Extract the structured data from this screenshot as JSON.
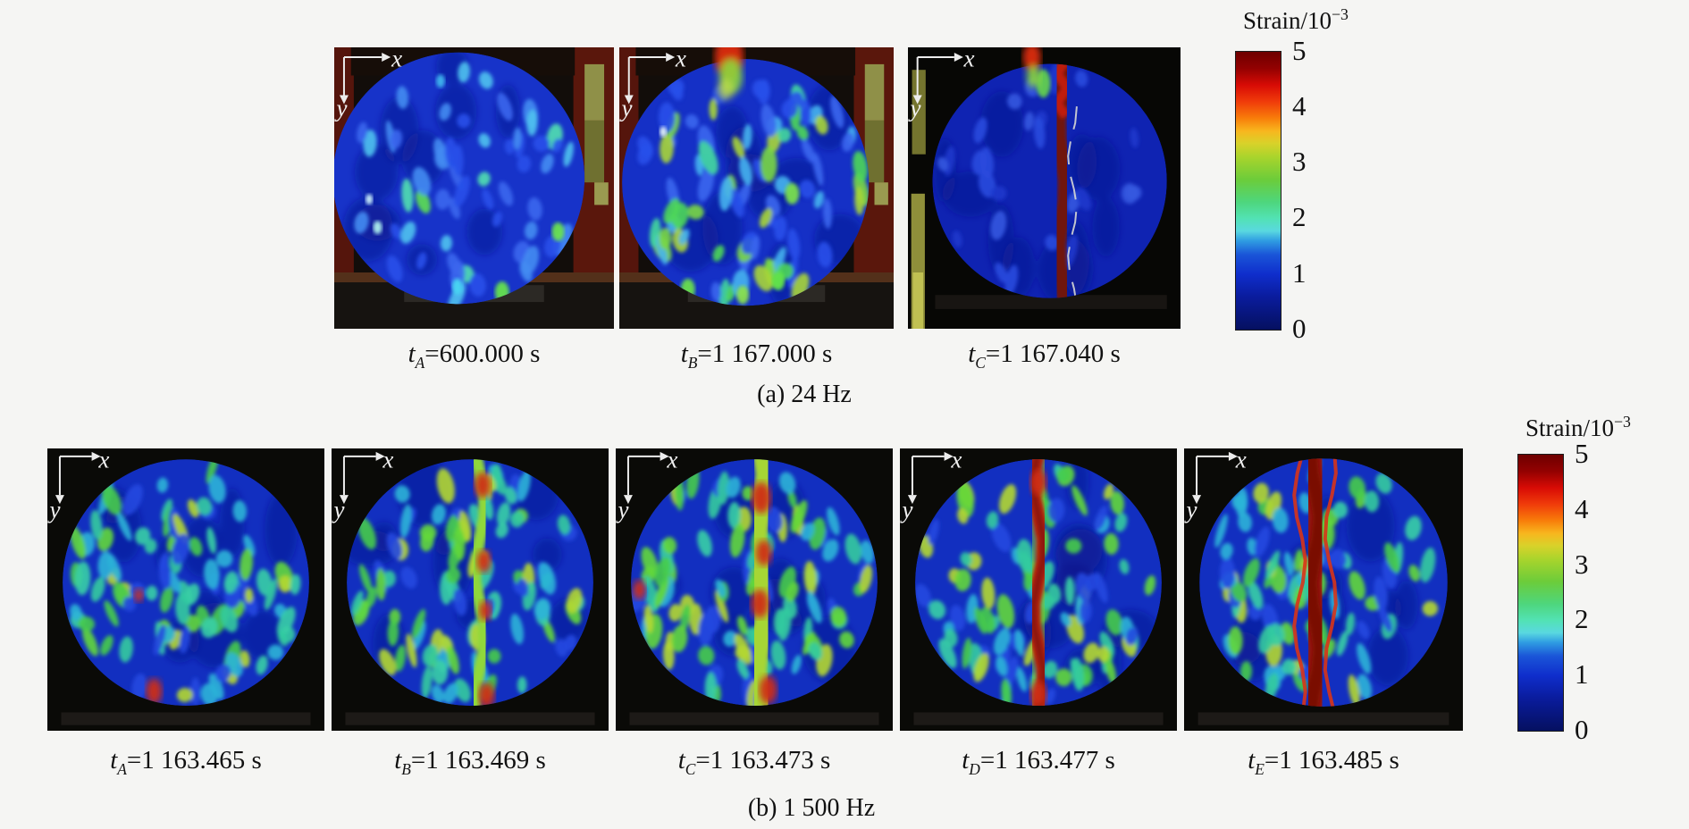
{
  "page": {
    "background": "#f5f5f3"
  },
  "axis": {
    "x_label": "x",
    "y_label": "y"
  },
  "colormap": {
    "stops": [
      [
        0.0,
        "#6e0000"
      ],
      [
        0.06,
        "#930101"
      ],
      [
        0.12,
        "#d80b05"
      ],
      [
        0.18,
        "#f03c0a"
      ],
      [
        0.24,
        "#f87e0a"
      ],
      [
        0.285,
        "#f8b61e"
      ],
      [
        0.33,
        "#d8d22a"
      ],
      [
        0.38,
        "#a8d42c"
      ],
      [
        0.46,
        "#6ccc3a"
      ],
      [
        0.54,
        "#4ed67c"
      ],
      [
        0.6,
        "#52e2b4"
      ],
      [
        0.645,
        "#59d8e0"
      ],
      [
        0.68,
        "#2f9de2"
      ],
      [
        0.73,
        "#1a55d8"
      ],
      [
        0.8,
        "#0f2ecc"
      ],
      [
        0.88,
        "#0a1c9e"
      ],
      [
        1.0,
        "#051060"
      ]
    ]
  },
  "colorbars": [
    {
      "title_base": "Strain/10",
      "title_exp": "−3",
      "ticks": [
        "5",
        "4",
        "3",
        "2",
        "1",
        "0"
      ]
    },
    {
      "title_base": "Strain/10",
      "title_exp": "−3",
      "ticks": [
        "5",
        "4",
        "3",
        "2",
        "1",
        "0"
      ]
    }
  ],
  "rows": [
    {
      "caption": "(a) 24 Hz",
      "images": [
        {
          "t_var": "t",
          "t_sub": "A",
          "t_rest": "=600.000 s"
        },
        {
          "t_var": "t",
          "t_sub": "B",
          "t_rest": "=1 167.000 s"
        },
        {
          "t_var": "t",
          "t_sub": "C",
          "t_rest": "=1 167.040 s"
        }
      ]
    },
    {
      "caption": "(b) 1 500 Hz",
      "images": [
        {
          "t_var": "t",
          "t_sub": "A",
          "t_rest": "=1 163.465 s"
        },
        {
          "t_var": "t",
          "t_sub": "B",
          "t_rest": "=1 163.469 s"
        },
        {
          "t_var": "t",
          "t_sub": "C",
          "t_rest": "=1 163.473 s"
        },
        {
          "t_var": "t",
          "t_sub": "D",
          "t_rest": "=1 163.477 s"
        },
        {
          "t_var": "t",
          "t_sub": "E",
          "t_rest": "=1 163.485 s"
        }
      ]
    }
  ],
  "render": {
    "a0": {
      "seed": 11,
      "scene": "labA",
      "circle": [
        0.445,
        0.465,
        0.45
      ],
      "base": "#1733c9",
      "speckles": {
        "n": 55,
        "warm": 0.08,
        "cold": [
          "#2750ea",
          "#3a66ee",
          "#448cf2",
          "#4fc2f0"
        ],
        "warmc": [
          "#52e0b0",
          "#5ce052"
        ]
      },
      "accents": [
        [
          0.6,
          0.87,
          "#66e24e",
          8
        ],
        [
          0.8,
          0.655,
          "#6ae250",
          7
        ],
        [
          0.155,
          0.64,
          "#aef2ee",
          5
        ],
        [
          0.125,
          0.54,
          "#d2f8ff",
          4
        ],
        [
          0.44,
          0.85,
          "#48d8f2",
          6
        ],
        [
          0.38,
          0.12,
          "#3fb6ee",
          5
        ]
      ],
      "arrows": "A"
    },
    "a1": {
      "seed": 23,
      "scene": "labA",
      "circle": [
        0.46,
        0.48,
        0.45
      ],
      "base": "#1530c6",
      "speckles": {
        "n": 85,
        "warm": 0.4,
        "cold": [
          "#2750ea",
          "#3a66ee",
          "#47b4f0"
        ],
        "warmc": [
          "#43d89c",
          "#4ed858",
          "#7ad842",
          "#a8d636"
        ]
      },
      "flame": {
        "x": 0.4,
        "big": true
      },
      "accents": [
        [
          0.16,
          0.3,
          "#e8f8f8",
          4
        ],
        [
          0.63,
          0.52,
          "#7ae04e",
          8
        ],
        [
          0.25,
          0.86,
          "#6ae04c",
          8
        ],
        [
          0.45,
          0.88,
          "#8ae04e",
          7
        ],
        [
          0.58,
          0.83,
          "#5ee24c",
          7
        ]
      ],
      "arrows": "A"
    },
    "a2": {
      "seed": 37,
      "scene": "labC",
      "circle": [
        0.52,
        0.475,
        0.43
      ],
      "base": "#0f23b2",
      "speckles": {
        "n": 26,
        "warm": 0.0,
        "cold": [
          "#1c37cc",
          "#2a4ade",
          "#3558e0"
        ],
        "warmc": []
      },
      "crack": {
        "x": 0.565,
        "w": 0.062,
        "color": "#701510",
        "bright": "#c01c0e",
        "fringe": true
      },
      "flame": {
        "x": 0.455,
        "small": true
      },
      "arrows": "A"
    },
    "b0": {
      "seed": 51,
      "scene": "darkB",
      "circle": [
        0.5,
        0.475,
        0.445
      ],
      "base": "#122fc0",
      "speckles": {
        "n": 95,
        "warm": 0.5,
        "cold": [
          "#2448e0",
          "#2cb4d8",
          "#33cba0"
        ],
        "warmc": [
          "#46cc4a",
          "#63d83a",
          "#b4d832",
          "#38cfa6"
        ]
      },
      "reds": [
        [
          0.385,
          0.86,
          9
        ],
        [
          0.33,
          0.52,
          5
        ]
      ],
      "arrows": "B"
    },
    "b1": {
      "seed": 63,
      "scene": "darkB",
      "circle": [
        0.5,
        0.475,
        0.445
      ],
      "base": "#122fc0",
      "speckles": {
        "n": 95,
        "warm": 0.52,
        "cold": [
          "#2448e0",
          "#2cb4d8",
          "#33cba0"
        ],
        "warmc": [
          "#46cc4a",
          "#63d83a",
          "#b4d832",
          "#38cfa6"
        ]
      },
      "band": {
        "x": 0.535,
        "w": 0.045,
        "color": "#90d83a"
      },
      "reds": [
        [
          0.545,
          0.13,
          9
        ],
        [
          0.55,
          0.4,
          8
        ],
        [
          0.555,
          0.575,
          7
        ],
        [
          0.56,
          0.875,
          9
        ]
      ],
      "arrows": "B"
    },
    "b2": {
      "seed": 77,
      "scene": "darkB",
      "circle": [
        0.5,
        0.475,
        0.445
      ],
      "base": "#122fc0",
      "speckles": {
        "n": 100,
        "warm": 0.55,
        "cold": [
          "#2448e0",
          "#2cb4d8",
          "#33cba0"
        ],
        "warmc": [
          "#46cc4a",
          "#63d83a",
          "#b4d832",
          "#38cfa6"
        ]
      },
      "band": {
        "x": 0.525,
        "w": 0.08,
        "color": "#a6d634"
      },
      "reds": [
        [
          0.525,
          0.175,
          11
        ],
        [
          0.535,
          0.37,
          9
        ],
        [
          0.52,
          0.55,
          10
        ],
        [
          0.55,
          0.855,
          10
        ],
        [
          0.085,
          0.5,
          7
        ]
      ],
      "arrows": "B"
    },
    "b3": {
      "seed": 89,
      "scene": "darkB",
      "circle": [
        0.5,
        0.475,
        0.445
      ],
      "base": "#122fc0",
      "speckles": {
        "n": 95,
        "warm": 0.5,
        "cold": [
          "#2448e0",
          "#2cb4d8",
          "#33cba0"
        ],
        "warmc": [
          "#46cc4a",
          "#63d83a",
          "#b4d832",
          "#38cfa6"
        ]
      },
      "band": {
        "x": 0.5,
        "w": 0.05,
        "color": "#c22810",
        "core": "#8e150a",
        "halo": "#7cd23c"
      },
      "reds": [
        [
          0.5,
          0.12,
          9
        ],
        [
          0.5,
          0.87,
          9
        ]
      ],
      "arrows": "B"
    },
    "b4": {
      "seed": 101,
      "scene": "darkB",
      "circle": [
        0.5,
        0.475,
        0.445
      ],
      "base": "#122fc0",
      "speckles": {
        "n": 90,
        "warm": 0.48,
        "cold": [
          "#2448e0",
          "#2cb4d8",
          "#33cba0"
        ],
        "warmc": [
          "#46cc4a",
          "#63d83a",
          "#b4d832",
          "#38cfa6"
        ]
      },
      "band": {
        "x": 0.47,
        "w": 0.095,
        "color": "#941309",
        "core": "#7a0f06",
        "edges": "#d83418"
      },
      "arrows": "B"
    }
  }
}
